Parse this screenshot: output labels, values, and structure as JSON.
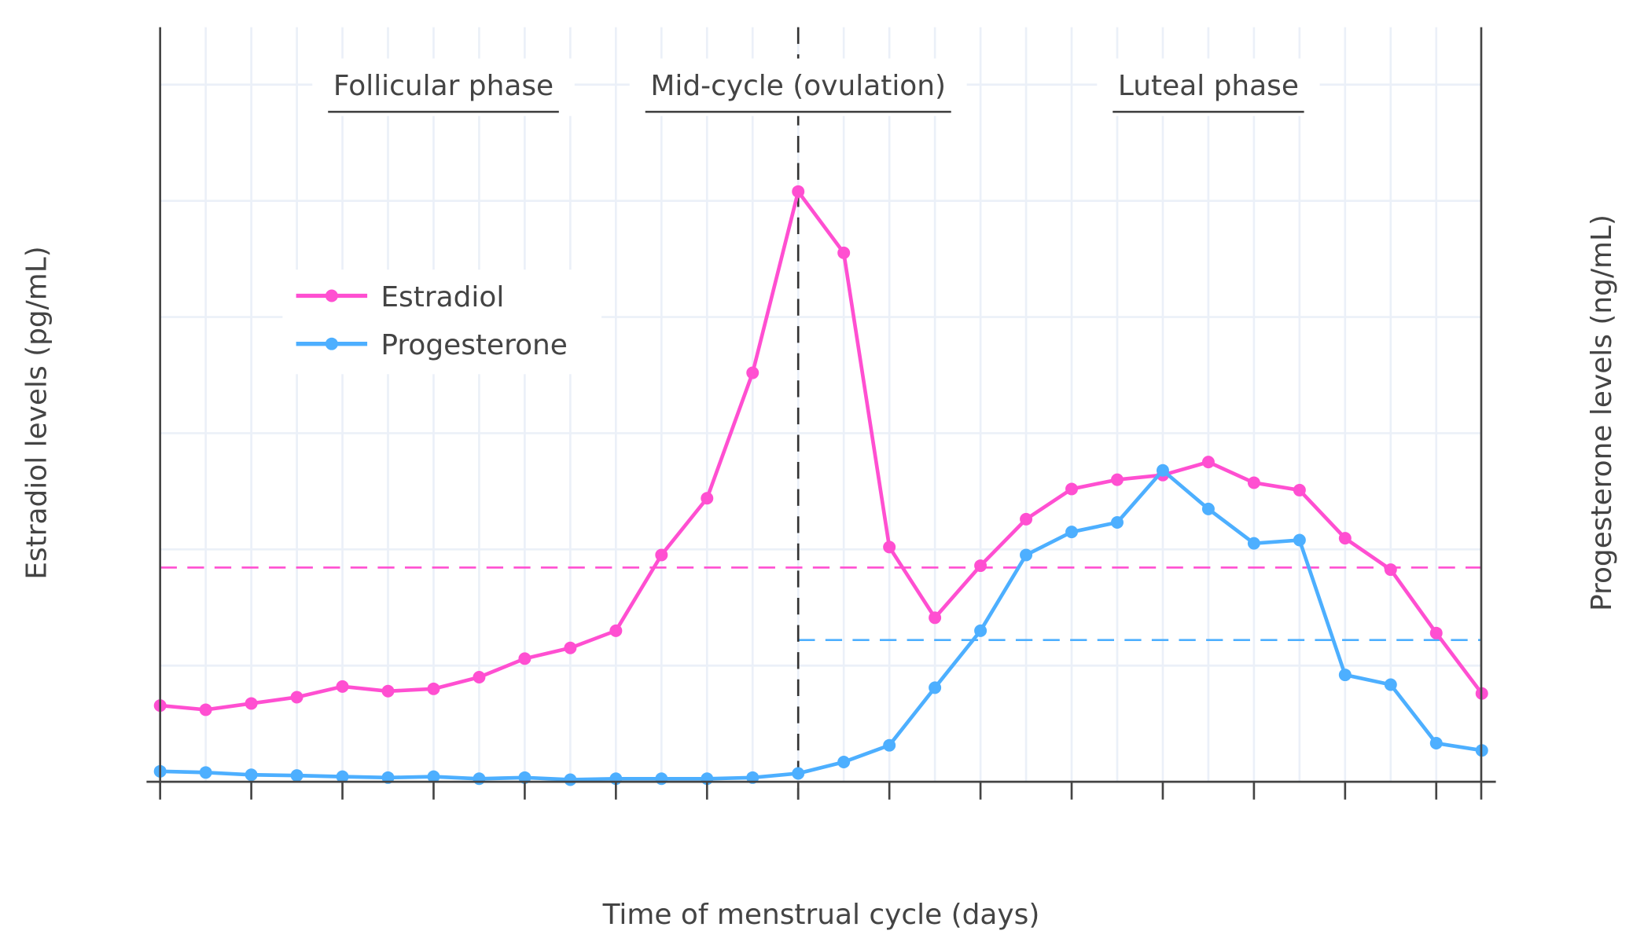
{
  "chart_data": {
    "type": "line",
    "xlabel": "Time of menstrual cycle (days)",
    "ylabel": "Estradiol levels (pg/mL)",
    "y2label": "Progesterone levels (ng/mL)",
    "xlim": [
      0,
      29
    ],
    "ylim": [
      0,
      325
    ],
    "y2lim": [
      0,
      32.5
    ],
    "xticks": [
      0,
      2,
      4,
      6,
      8,
      10,
      12,
      14,
      16,
      18,
      20,
      22,
      24,
      26,
      28
    ],
    "yticks": [
      0,
      50,
      100,
      150,
      200,
      250,
      300
    ],
    "y2ticks": [
      0,
      5,
      10,
      15,
      20,
      25,
      30
    ],
    "grid": true,
    "legend_placement": "upper-left",
    "x": [
      0,
      1,
      2,
      3,
      4,
      5,
      6,
      7,
      8,
      9,
      10,
      11,
      12,
      13,
      14,
      15,
      16,
      17,
      18,
      19,
      20,
      21,
      22,
      23,
      24,
      25,
      26,
      27,
      28,
      29
    ],
    "series": [
      {
        "name": "Estradiol",
        "axis": "left",
        "color": "#FF4FD1",
        "values": [
          32.8,
          31,
          33.7,
          36.4,
          41,
          39,
          40,
          45,
          53,
          57.6,
          65,
          97.6,
          122,
          176,
          254,
          227.6,
          101,
          70.6,
          93,
          113,
          126,
          130,
          132,
          137.6,
          128.7,
          125.5,
          104.8,
          91.3,
          64,
          38
        ]
      },
      {
        "name": "Progesterone",
        "axis": "right",
        "color": "#4DAFFF",
        "values": [
          0.45,
          0.4,
          0.3,
          0.27,
          0.22,
          0.18,
          0.22,
          0.13,
          0.18,
          0.09,
          0.13,
          0.13,
          0.13,
          0.18,
          0.36,
          0.85,
          1.57,
          4.05,
          6.5,
          9.76,
          10.75,
          11.16,
          13.4,
          11.74,
          10.26,
          10.4,
          4.6,
          4.18,
          1.66,
          1.35
        ]
      }
    ],
    "reference_lines": [
      {
        "axis": "left",
        "value": 92.2,
        "x_range": [
          0,
          29
        ],
        "color": "#FF4FD1",
        "style": "dashed"
      },
      {
        "axis": "right",
        "value": 6.1,
        "x_range": [
          14,
          29
        ],
        "color": "#4DAFFF",
        "style": "dashed"
      },
      {
        "axis": "x",
        "value": 14,
        "color": "#333333",
        "style": "dashed"
      }
    ],
    "annotations": [
      {
        "text": "Follicular phase",
        "x": 5
      },
      {
        "text": "Mid-cycle (ovulation)",
        "x": 14
      },
      {
        "text": "Luteal phase",
        "x": 23
      }
    ]
  }
}
